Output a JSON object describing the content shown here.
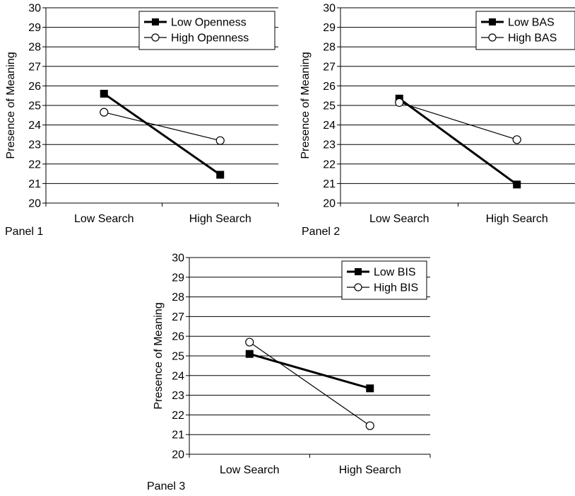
{
  "chart_data": [
    {
      "type": "line",
      "panel_label": "Panel 1",
      "categories": [
        "Low Search",
        "High Search"
      ],
      "xlabel": "",
      "ylabel": "Presence of Meaning",
      "ylim": [
        20,
        30
      ],
      "yticks": [
        "20",
        "21",
        "22",
        "23",
        "24",
        "25",
        "26",
        "27",
        "28",
        "29",
        "30"
      ],
      "grid": true,
      "legend_position": "top-right",
      "series": [
        {
          "name": "Low Openness",
          "marker": "filled-square",
          "line": "thick",
          "values": [
            25.6,
            21.45
          ]
        },
        {
          "name": "High Openness",
          "marker": "open-circle",
          "line": "thin",
          "values": [
            24.65,
            23.2
          ]
        }
      ]
    },
    {
      "type": "line",
      "panel_label": "Panel 2",
      "categories": [
        "Low Search",
        "High Search"
      ],
      "xlabel": "",
      "ylabel": "Presence of Meaning",
      "ylim": [
        20,
        30
      ],
      "yticks": [
        "20",
        "21",
        "22",
        "23",
        "24",
        "25",
        "26",
        "27",
        "28",
        "29",
        "30"
      ],
      "grid": true,
      "legend_position": "top-right",
      "series": [
        {
          "name": "Low BAS",
          "marker": "filled-square",
          "line": "thick",
          "values": [
            25.35,
            20.95
          ]
        },
        {
          "name": "High BAS",
          "marker": "open-circle",
          "line": "thin",
          "values": [
            25.15,
            23.25
          ]
        }
      ]
    },
    {
      "type": "line",
      "panel_label": "Panel 3",
      "categories": [
        "Low Search",
        "High Search"
      ],
      "xlabel": "",
      "ylabel": "Presence of Meaning",
      "ylim": [
        20,
        30
      ],
      "yticks": [
        "20",
        "21",
        "22",
        "23",
        "24",
        "25",
        "26",
        "27",
        "28",
        "29",
        "30"
      ],
      "grid": true,
      "legend_position": "top-right",
      "series": [
        {
          "name": "Low BIS",
          "marker": "filled-square",
          "line": "thick",
          "values": [
            25.1,
            23.35
          ]
        },
        {
          "name": "High BIS",
          "marker": "open-circle",
          "line": "thin",
          "values": [
            25.7,
            21.45
          ]
        }
      ]
    }
  ]
}
